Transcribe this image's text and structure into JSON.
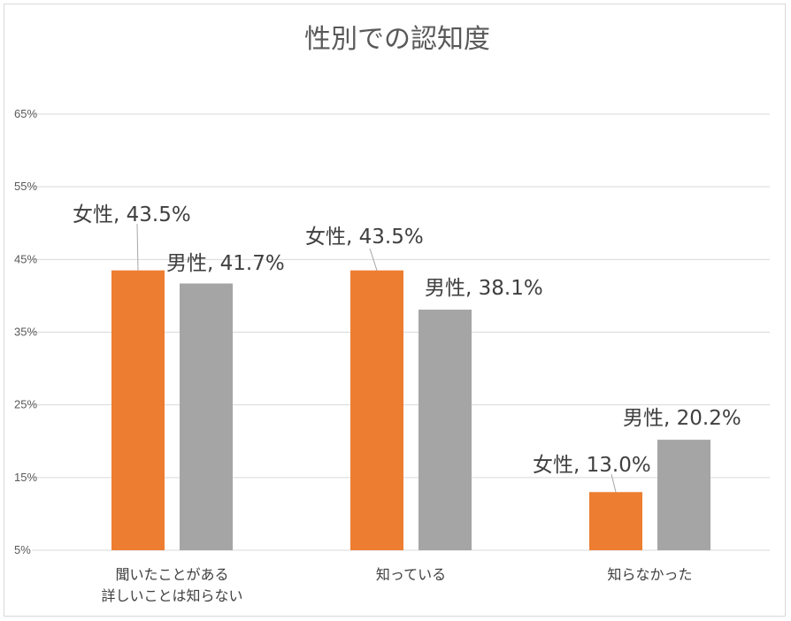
{
  "chart_data": {
    "type": "bar",
    "title": "性別での認知度",
    "categories": [
      [
        "聞いたことがある",
        "詳しいことは知らない"
      ],
      [
        "知っている"
      ],
      [
        "知らなかった"
      ]
    ],
    "series": [
      {
        "name": "女性",
        "values": [
          43.5,
          43.5,
          13.0
        ],
        "color": "#ed7d31"
      },
      {
        "name": "男性",
        "values": [
          41.7,
          38.1,
          20.2
        ],
        "color": "#a5a5a5"
      }
    ],
    "data_labels": [
      [
        "女性, 43.5%",
        "女性, 43.5%",
        "女性, 13.0%"
      ],
      [
        "男性, 41.7%",
        "男性, 38.1%",
        "男性, 20.2%"
      ]
    ],
    "yticks": [
      "5%",
      "15%",
      "25%",
      "35%",
      "45%",
      "55%",
      "65%"
    ],
    "ytick_values": [
      5,
      15,
      25,
      35,
      45,
      55,
      65
    ],
    "ylim": [
      5,
      65
    ],
    "grid": true,
    "legend": "none"
  }
}
